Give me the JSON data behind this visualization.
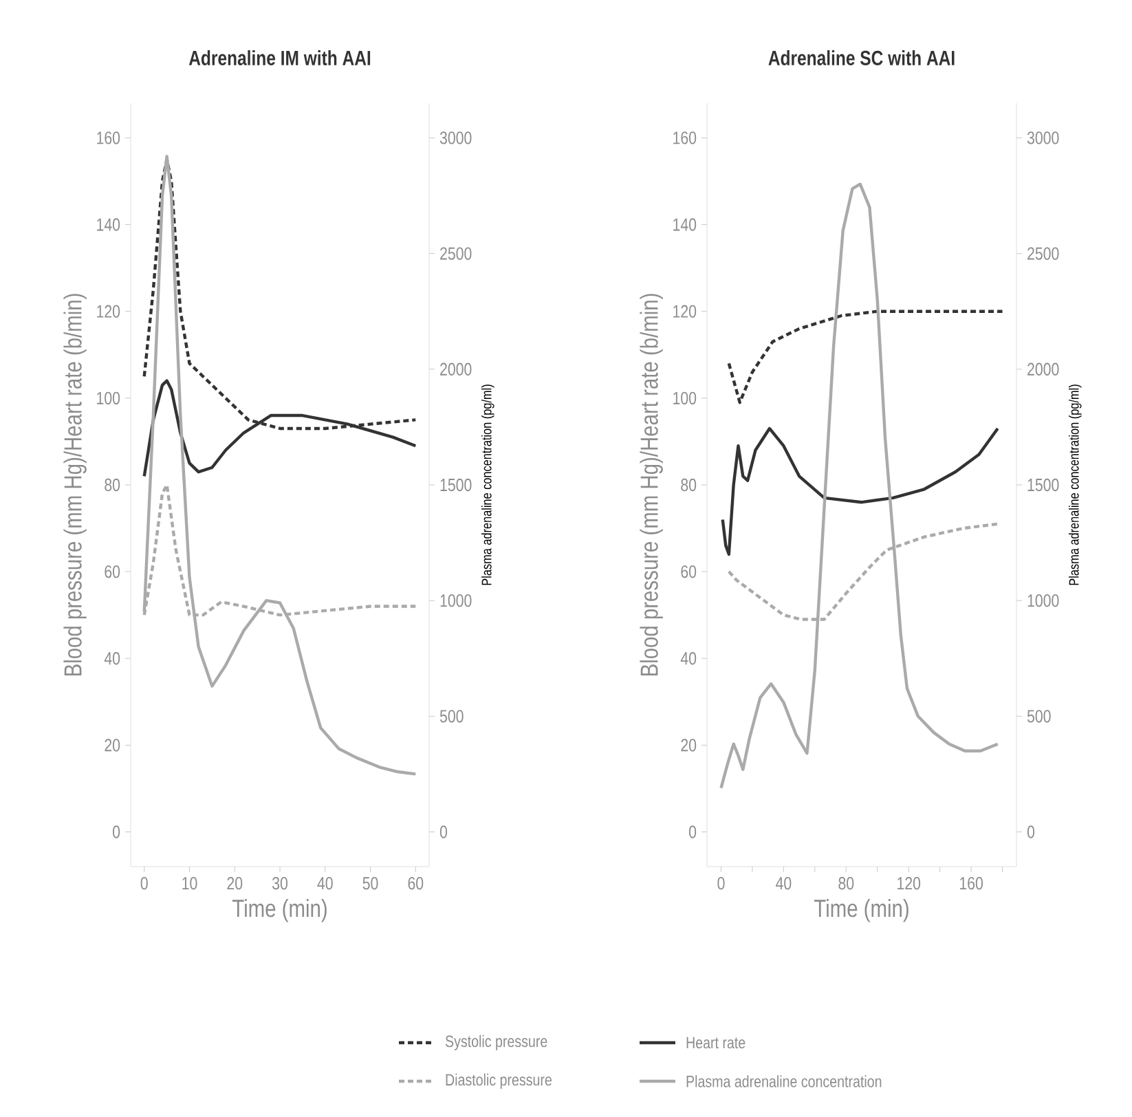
{
  "chart_data": [
    {
      "type": "line",
      "title": "Adrenaline IM with AAI",
      "xlabel": "Time (min)",
      "ylabel": "Blood pressure (mm Hg)/Heart rate (b/min)",
      "y2label": "Plasma adrenaline concentration (pg/ml)",
      "xlim": [
        -3,
        63
      ],
      "xticks": [
        0,
        10,
        20,
        30,
        40,
        50,
        60
      ],
      "ylim": [
        -8,
        168
      ],
      "yticks": [
        0,
        20,
        40,
        60,
        80,
        100,
        120,
        140,
        160
      ],
      "y2lim": [
        -150,
        3150
      ],
      "y2ticks": [
        0,
        500,
        1000,
        1500,
        2000,
        2500,
        3000
      ],
      "legend": "bottom",
      "series": [
        {
          "name": "Systolic pressure",
          "color": "#333333",
          "line_style": "dashed",
          "x": [
            0,
            2,
            4,
            5,
            6,
            8,
            10,
            15,
            20,
            23,
            30,
            40,
            50,
            60
          ],
          "values": [
            105,
            125,
            150,
            155,
            150,
            120,
            108,
            103,
            98,
            95,
            93,
            93,
            94,
            95
          ]
        },
        {
          "name": "Heart rate",
          "color": "#333333",
          "line_style": "solid",
          "x": [
            0,
            2,
            4,
            5,
            6,
            8,
            10,
            12,
            15,
            18,
            22,
            28,
            35,
            45,
            55,
            60
          ],
          "values": [
            82,
            95,
            103,
            104,
            102,
            92,
            85,
            83,
            84,
            88,
            92,
            96,
            96,
            94,
            91,
            89
          ]
        },
        {
          "name": "Diastolic pressure",
          "color": "#aaaaaa",
          "line_style": "dashed",
          "x": [
            0,
            2,
            4,
            5,
            7,
            10,
            13,
            17,
            22,
            30,
            40,
            50,
            60
          ],
          "values": [
            50,
            62,
            78,
            80,
            65,
            50,
            50,
            53,
            52,
            50,
            51,
            52,
            52
          ]
        },
        {
          "name": "Plasma adrenaline concentration",
          "color": "#aaaaaa",
          "line_style": "solid",
          "axis": "y2",
          "x": [
            0,
            2,
            4,
            5,
            6,
            8,
            10,
            12,
            15,
            18,
            22,
            27,
            30,
            33,
            36,
            39,
            43,
            47,
            52,
            56,
            60
          ],
          "values": [
            950,
            1800,
            2750,
            2920,
            2750,
            1800,
            1100,
            800,
            630,
            720,
            870,
            1000,
            990,
            880,
            650,
            450,
            360,
            320,
            280,
            260,
            250
          ]
        }
      ]
    },
    {
      "type": "line",
      "title": "Adrenaline SC with AAI",
      "xlabel": "Time (min)",
      "ylabel": "Blood pressure (mm Hg)/Heart rate (b/min)",
      "y2label": "Plasma adrenaline concentration (pg/ml)",
      "xlim": [
        -9,
        189
      ],
      "xticks": [
        0,
        {
          "value": 20,
          "label": null
        },
        40,
        {
          "value": 60,
          "label": null
        },
        80,
        {
          "value": 100,
          "label": null
        },
        120,
        {
          "value": 140,
          "label": null
        },
        160,
        {
          "value": 180,
          "label": null
        }
      ],
      "ylim": [
        -8,
        168
      ],
      "yticks": [
        0,
        20,
        40,
        60,
        80,
        100,
        120,
        140,
        160
      ],
      "y2lim": [
        -150,
        3150
      ],
      "y2ticks": [
        0,
        500,
        1000,
        1500,
        2000,
        2500,
        3000
      ],
      "series": [
        {
          "color": "#333333",
          "line_style": "dashed",
          "x": [
            5,
            12,
            20,
            33,
            50,
            77,
            100,
            180
          ],
          "values": [
            108,
            99,
            106,
            113,
            116,
            119,
            120,
            120
          ]
        },
        {
          "color": "#333333",
          "line_style": "solid",
          "x": [
            1,
            3,
            5,
            8,
            11,
            14,
            17,
            22,
            31,
            40,
            50,
            66,
            90,
            110,
            130,
            150,
            165,
            177
          ],
          "values": [
            72,
            66,
            64,
            80,
            89,
            82,
            81,
            88,
            93,
            89,
            82,
            77,
            76,
            77,
            79,
            83,
            87,
            93
          ]
        },
        {
          "color": "#aaaaaa",
          "line_style": "dashed",
          "x": [
            5,
            10,
            25,
            40,
            51,
            66,
            80,
            95,
            106,
            130,
            155,
            177
          ],
          "values": [
            60,
            58,
            54,
            50,
            49,
            49,
            55,
            61,
            65,
            68,
            70,
            71
          ]
        },
        {
          "color": "#aaaaaa",
          "line_style": "solid",
          "axis": "y2",
          "x": [
            0,
            4,
            8,
            11,
            14,
            18,
            25,
            32,
            40,
            48,
            55,
            60,
            66,
            72,
            78,
            84,
            89,
            95,
            100,
            105,
            111,
            115,
            119,
            126,
            136,
            146,
            156,
            166,
            177
          ],
          "values": [
            190,
            290,
            380,
            330,
            270,
            400,
            580,
            640,
            560,
            420,
            340,
            700,
            1400,
            2100,
            2600,
            2780,
            2800,
            2700,
            2300,
            1700,
            1200,
            850,
            620,
            500,
            430,
            380,
            350,
            350,
            380
          ]
        }
      ]
    }
  ]
}
